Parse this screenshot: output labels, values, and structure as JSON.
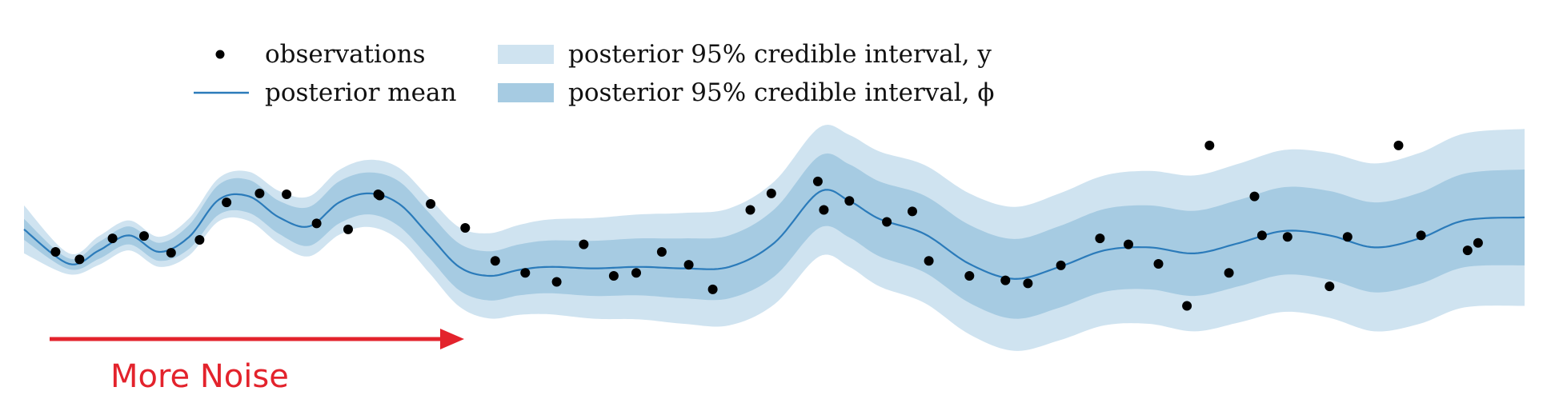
{
  "chart_data": {
    "type": "line",
    "title": "",
    "xlabel": "",
    "ylabel": "",
    "axes_visible": false,
    "grid": false,
    "legend_placement": "top-left",
    "legend": [
      {
        "label": "observations",
        "marker": "dot",
        "color": "#000000"
      },
      {
        "label": "posterior mean",
        "marker": "line",
        "color": "#2b7bba"
      },
      {
        "label": "posterior 95% credible interval, y",
        "marker": "band",
        "color": "#cfe3f0"
      },
      {
        "label": "posterior 95% credible interval, ϕ",
        "marker": "band",
        "color": "#a6cbe2"
      }
    ],
    "xlim": [
      0,
      1
    ],
    "ylim": [
      -2.6,
      3.4
    ],
    "observations": {
      "x": [
        0.021,
        0.037,
        0.059,
        0.08,
        0.098,
        0.117,
        0.135,
        0.157,
        0.175,
        0.195,
        0.216,
        0.236,
        0.237,
        0.271,
        0.294,
        0.314,
        0.334,
        0.355,
        0.373,
        0.393,
        0.408,
        0.425,
        0.443,
        0.459,
        0.484,
        0.498,
        0.529,
        0.533,
        0.55,
        0.575,
        0.592,
        0.603,
        0.63,
        0.654,
        0.669,
        0.691,
        0.717,
        0.736,
        0.756,
        0.775,
        0.79,
        0.803,
        0.82,
        0.825,
        0.842,
        0.87,
        0.882,
        0.916,
        0.931,
        0.962,
        0.969
      ],
      "y": [
        -0.2,
        -0.45,
        0.25,
        0.33,
        -0.23,
        0.2,
        1.45,
        1.75,
        1.72,
        0.75,
        0.55,
        1.72,
        1.68,
        1.4,
        0.6,
        -0.5,
        -0.9,
        -1.2,
        0.05,
        -1.0,
        -0.9,
        -0.2,
        -0.63,
        -1.45,
        1.2,
        1.75,
        2.15,
        1.2,
        1.5,
        0.8,
        1.15,
        -0.5,
        -1.0,
        -1.15,
        -1.25,
        -0.65,
        0.25,
        0.05,
        -0.6,
        -2.0,
        3.35,
        -0.9,
        1.65,
        0.35,
        0.3,
        -1.35,
        0.3,
        3.35,
        0.35,
        -0.15,
        0.1
      ]
    },
    "posterior_mean": {
      "x": [
        0.0,
        0.03,
        0.05,
        0.07,
        0.09,
        0.11,
        0.13,
        0.15,
        0.17,
        0.19,
        0.21,
        0.23,
        0.25,
        0.27,
        0.29,
        0.31,
        0.33,
        0.35,
        0.38,
        0.41,
        0.44,
        0.47,
        0.5,
        0.53,
        0.55,
        0.57,
        0.6,
        0.63,
        0.66,
        0.69,
        0.72,
        0.75,
        0.78,
        0.81,
        0.84,
        0.87,
        0.9,
        0.93,
        0.96,
        1.0
      ],
      "y": [
        0.55,
        -0.6,
        -0.15,
        0.35,
        -0.2,
        0.3,
        1.55,
        1.65,
        0.95,
        0.65,
        1.45,
        1.75,
        1.4,
        0.35,
        -0.7,
        -1.0,
        -0.8,
        -0.7,
        -0.75,
        -0.7,
        -0.75,
        -0.7,
        0.1,
        1.8,
        1.5,
        0.9,
        0.4,
        -0.6,
        -1.1,
        -0.7,
        -0.15,
        -0.05,
        -0.25,
        0.1,
        0.5,
        0.35,
        -0.05,
        0.25,
        0.85,
        0.95
      ]
    },
    "interval_phi_halfwidth": [
      0.35,
      0.18,
      0.28,
      0.3,
      0.3,
      0.4,
      0.5,
      0.55,
      0.55,
      0.65,
      0.7,
      0.7,
      0.75,
      0.75,
      0.78,
      0.82,
      0.85,
      0.88,
      0.92,
      0.95,
      1.0,
      1.05,
      1.12,
      1.2,
      1.22,
      1.25,
      1.28,
      1.3,
      1.33,
      1.36,
      1.38,
      1.4,
      1.42,
      1.44,
      1.46,
      1.48,
      1.5,
      1.52,
      1.56,
      1.6
    ],
    "interval_y_halfwidth": [
      0.8,
      0.35,
      0.48,
      0.5,
      0.5,
      0.62,
      0.72,
      0.82,
      0.88,
      1.0,
      1.08,
      1.12,
      1.2,
      1.25,
      1.32,
      1.42,
      1.5,
      1.58,
      1.68,
      1.75,
      1.85,
      1.95,
      2.05,
      2.15,
      2.2,
      2.25,
      2.3,
      2.35,
      2.4,
      2.45,
      2.5,
      2.55,
      2.6,
      2.65,
      2.7,
      2.75,
      2.8,
      2.85,
      2.9,
      2.95
    ],
    "annotation": {
      "text": "More Noise",
      "color": "#e3232c",
      "arrow": "right"
    }
  }
}
